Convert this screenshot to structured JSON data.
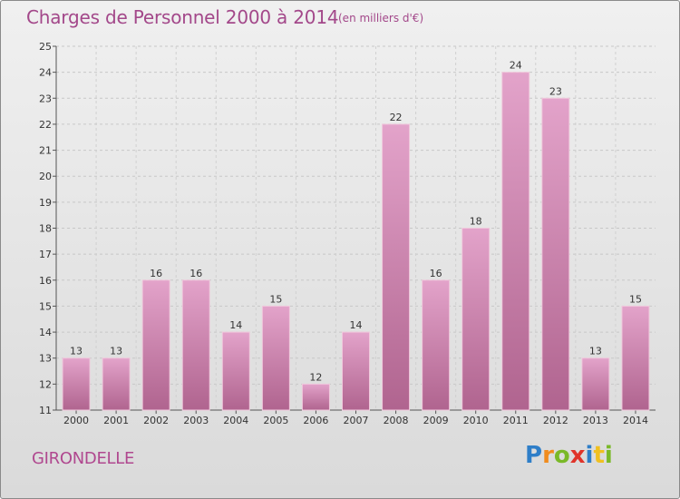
{
  "chart_data": {
    "type": "bar",
    "title": "Charges de Personnel 2000 à 2014",
    "subtitle": "(en milliers d'€)",
    "categories": [
      "2000",
      "2001",
      "2002",
      "2003",
      "2004",
      "2005",
      "2006",
      "2007",
      "2008",
      "2009",
      "2010",
      "2011",
      "2012",
      "2013",
      "2014"
    ],
    "values": [
      13,
      13,
      16,
      16,
      14,
      15,
      12,
      14,
      22,
      16,
      18,
      24,
      23,
      13,
      15
    ],
    "ylim": [
      11,
      25
    ],
    "yticks": [
      11,
      12,
      13,
      14,
      15,
      16,
      17,
      18,
      19,
      20,
      21,
      22,
      23,
      24,
      25
    ],
    "grid": true,
    "bar_color": "#d98cb8",
    "bar_color_dark": "#b56c97",
    "xlabel": "",
    "ylabel": ""
  },
  "footer": {
    "commune": "GIRONDELLE",
    "logo_text": "Proxiti"
  },
  "colors": {
    "title": "#a3488a",
    "accent": "#b0488f"
  }
}
